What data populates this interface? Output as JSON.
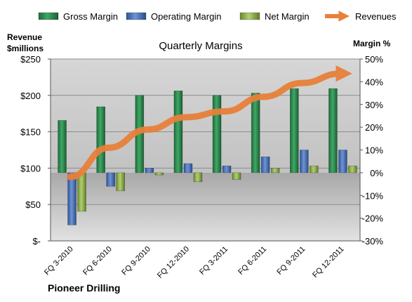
{
  "chart_data": {
    "type": "bar",
    "title": "Quarterly Margins",
    "footer": "Pioneer Drilling",
    "left_axis_title_line1": "Revenue",
    "left_axis_title_line2": "$millions",
    "right_axis_title": "Margin %",
    "categories": [
      "FQ 3-2010",
      "FQ 6-2010",
      "FQ 9-2010",
      "FQ 12-2010",
      "FQ 3-2011",
      "FQ 6-2011",
      "FQ 9-2011",
      "FQ 12-2011"
    ],
    "left_ylim": [
      0,
      250
    ],
    "left_ticks": [
      "$-",
      "$50",
      "$100",
      "$150",
      "$200",
      "$250"
    ],
    "right_ylim": [
      -30,
      50
    ],
    "right_ticks": [
      "-30%",
      "-20%",
      "-10%",
      "0%",
      "10%",
      "20%",
      "30%",
      "40%",
      "50%"
    ],
    "series": [
      {
        "name": "Gross Margin",
        "axis": "right",
        "unit": "%",
        "color": "#2E8B4E",
        "values": [
          23,
          29,
          34,
          36,
          34,
          35,
          37,
          37
        ]
      },
      {
        "name": "Operating Margin",
        "axis": "right",
        "unit": "%",
        "color": "#4A72B8",
        "values": [
          -23,
          -6,
          2,
          4,
          3,
          7,
          10,
          10
        ]
      },
      {
        "name": "Net Margin",
        "axis": "right",
        "unit": "%",
        "color": "#8DB04A",
        "values": [
          -17,
          -8,
          -1,
          -4,
          -3,
          2,
          3,
          3
        ]
      },
      {
        "name": "Revenues",
        "axis": "left",
        "unit": "$millions",
        "color": "#E8803A",
        "values": [
          88,
          128,
          153,
          170,
          178,
          198,
          217,
          230
        ]
      }
    ],
    "legend_position": "top",
    "grid": true
  }
}
